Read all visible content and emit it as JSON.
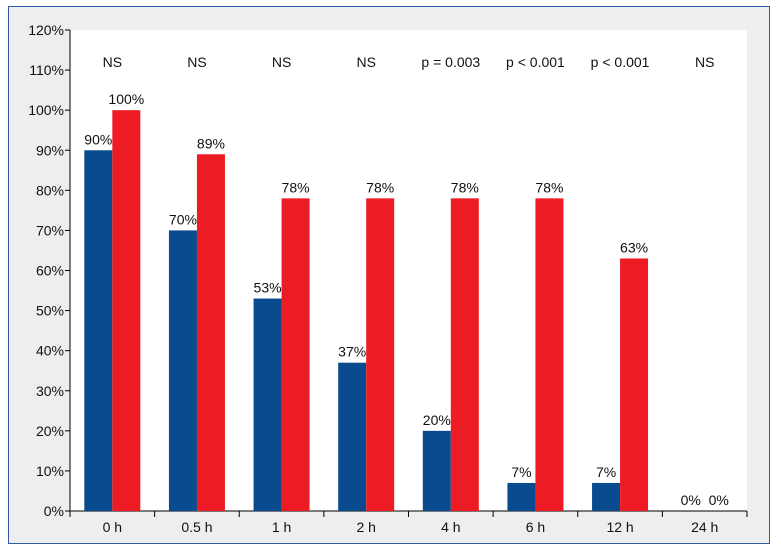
{
  "chart_data": {
    "type": "bar",
    "categories": [
      "0 h",
      "0.5 h",
      "1 h",
      "2 h",
      "4 h",
      "6 h",
      "12 h",
      "24 h"
    ],
    "series": [
      {
        "values": [
          90,
          70,
          53,
          37,
          20,
          7,
          7,
          0
        ],
        "labels": [
          "90%",
          "70%",
          "53%",
          "37%",
          "20%",
          "7%",
          "7%",
          "0%"
        ],
        "color": "#0a4a8f"
      },
      {
        "values": [
          100,
          89,
          78,
          78,
          78,
          78,
          63,
          0
        ],
        "labels": [
          "100%",
          "89%",
          "78%",
          "78%",
          "78%",
          "78%",
          "63%",
          "0%"
        ],
        "color": "#ed1c24"
      }
    ],
    "annotations": [
      "NS",
      "NS",
      "NS",
      "NS",
      "p = 0.003",
      "p < 0.001",
      "p < 0.001",
      "NS"
    ],
    "yticks": [
      "0%",
      "10%",
      "20%",
      "30%",
      "40%",
      "50%",
      "60%",
      "70%",
      "80%",
      "90%",
      "100%",
      "110%",
      "120%"
    ],
    "ylim": [
      0,
      120
    ],
    "title": "",
    "xlabel": "",
    "ylabel": "",
    "grid": false
  }
}
